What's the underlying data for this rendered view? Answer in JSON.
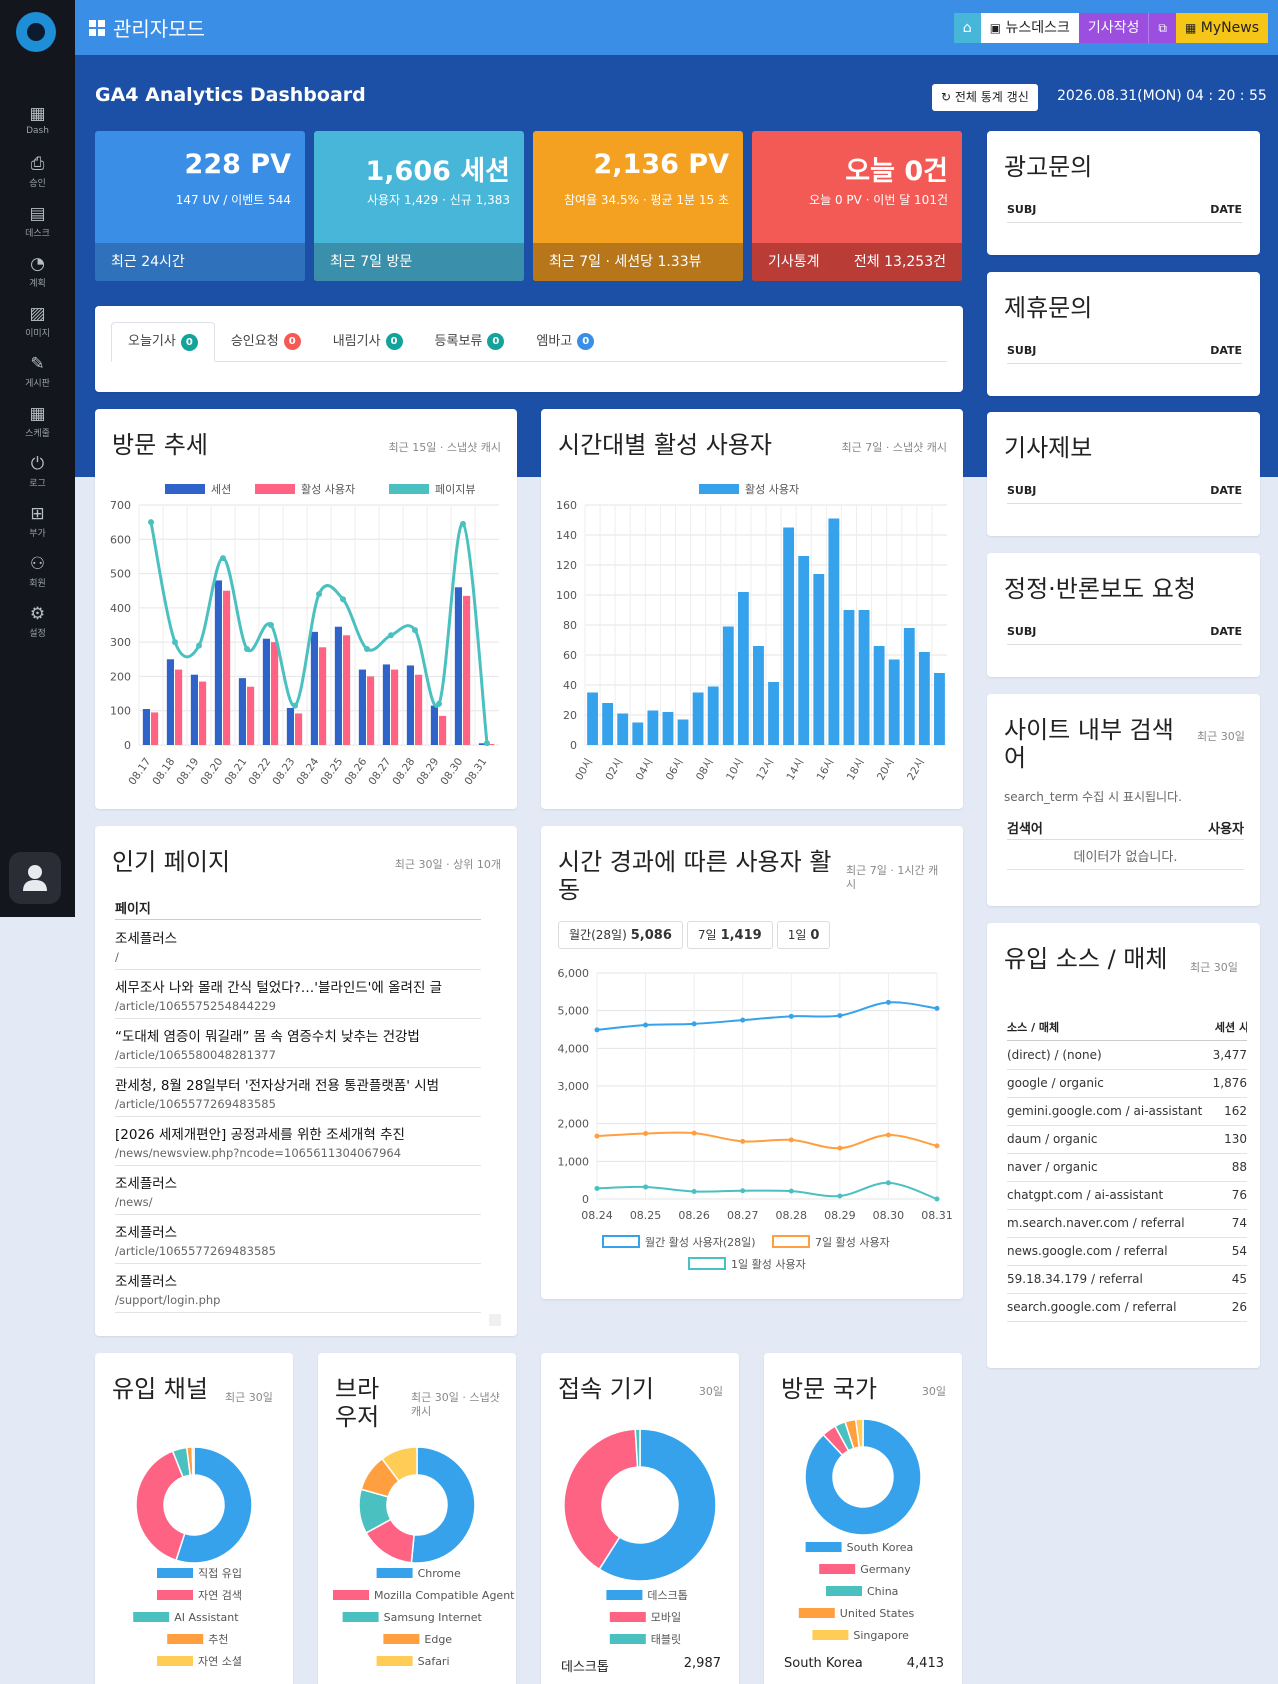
{
  "nav": {
    "items": [
      {
        "label": "Dash",
        "icon": "dashboard-grid-icon"
      },
      {
        "label": "승인",
        "icon": "approve-icon"
      },
      {
        "label": "데스크",
        "icon": "desk-icon"
      },
      {
        "label": "계획",
        "icon": "plan-icon"
      },
      {
        "label": "이미지",
        "icon": "image-icon"
      },
      {
        "label": "게시판",
        "icon": "board-icon"
      },
      {
        "label": "스케줄",
        "icon": "calendar-icon"
      },
      {
        "label": "로그",
        "icon": "log-icon"
      },
      {
        "label": "부가",
        "icon": "plus-box-icon"
      },
      {
        "label": "회원",
        "icon": "member-icon"
      },
      {
        "label": "설정",
        "icon": "gear-icon"
      }
    ]
  },
  "header": {
    "title": "관리자모드",
    "newsdesk": "뉴스데스크",
    "write": "기사작성",
    "mynews": "MyNews"
  },
  "dashboard": {
    "title": "GA4 Analytics Dashboard",
    "refresh": "↻ 전체 통계 갱신",
    "datetime": "2026.08.31(MON) 04 : 20 : 55"
  },
  "stats": [
    {
      "big": "228 PV",
      "sub": "147 UV  /  이벤트 544",
      "foot_left": "최근 24시간",
      "foot_right": "",
      "color": "#3a8ee6",
      "foot_color": "#2f72bb"
    },
    {
      "big": "1,606 세션",
      "sub": "사용자 1,429 · 신규 1,383",
      "foot_left": "최근 7일 방문",
      "foot_right": "",
      "color": "#48b6d8",
      "foot_color": "#3a8fab"
    },
    {
      "big": "2,136 PV",
      "sub": "참여율 34.5% · 평균 1분 15 초",
      "foot_left": "최근 7일 · 세션당 1.33뷰",
      "foot_right": "",
      "color": "#f4a020",
      "foot_color": "#b8761a"
    },
    {
      "big": "오늘 0건",
      "sub": "오늘 0 PV · 이번 달 101건",
      "foot_left": "기사통계",
      "foot_right": "전체 13,253건",
      "color": "#f45a55",
      "foot_color": "#b93c36"
    }
  ],
  "tabs": [
    {
      "label": "오늘기사",
      "count": "0",
      "color": "#13a39a"
    },
    {
      "label": "승인요청",
      "count": "0",
      "color": "#f45a55"
    },
    {
      "label": "내림기사",
      "count": "0",
      "color": "#13a39a"
    },
    {
      "label": "등록보류",
      "count": "0",
      "color": "#13a39a"
    },
    {
      "label": "엠바고",
      "count": "0",
      "color": "#3a8ee6"
    }
  ],
  "side": {
    "ad": {
      "title": "광고문의",
      "subj": "SUBJ",
      "date": "DATE"
    },
    "partner": {
      "title": "제휴문의",
      "subj": "SUBJ",
      "date": "DATE"
    },
    "tip": {
      "title": "기사제보",
      "subj": "SUBJ",
      "date": "DATE"
    },
    "correction": {
      "title": "정정·반론보도 요청",
      "subj": "SUBJ",
      "date": "DATE"
    },
    "search": {
      "title": "사이트 내부 검색어",
      "note": "최근 30일",
      "desc": "search_term 수집 시 표시됩니다.",
      "col1": "검색어",
      "col2": "사용자",
      "empty": "데이터가 없습니다."
    },
    "sources": {
      "title": "유입 소스 / 매체",
      "note": "최근 30일",
      "col1": "소스 / 매체",
      "col2": "세션",
      "col3": "사",
      "rows": [
        [
          "(direct) / (none)",
          "3,477"
        ],
        [
          "google / organic",
          "1,876"
        ],
        [
          "gemini.google.com / ai-assistant",
          "162"
        ],
        [
          "daum / organic",
          "130"
        ],
        [
          "naver / organic",
          "88"
        ],
        [
          "chatgpt.com / ai-assistant",
          "76"
        ],
        [
          "m.search.naver.com / referral",
          "74"
        ],
        [
          "news.google.com / referral",
          "54"
        ],
        [
          "59.18.34.179 / referral",
          "45"
        ],
        [
          "search.google.com / referral",
          "26"
        ]
      ]
    }
  },
  "visit_trend": {
    "title": "방문 추세",
    "note": "최근 15일 · 스냅샷 캐시"
  },
  "hourly": {
    "title": "시간대별 활성 사용자",
    "note": "최근 7일 · 스냅샷 캐시"
  },
  "popular": {
    "title": "인기 페이지",
    "note": "최근 30일 · 상위 10개",
    "col": "페이지",
    "rows": [
      {
        "title": "조세플러스",
        "path": "/"
      },
      {
        "title": "세무조사 나와 몰래 간식 털었다?…'블라인드'에 올려진 글",
        "path": "/article/1065575254844229"
      },
      {
        "title": "“도대체 염증이 뭐길래” 몸 속 염증수치 낮추는 건강법",
        "path": "/article/1065580048281377"
      },
      {
        "title": "관세청, 8월 28일부터 '전자상거래 전용 통관플랫폼' 시범",
        "path": "/article/1065577269483585"
      },
      {
        "title": "[2026 세제개편안] 공정과세를 위한 조세개혁 추진",
        "path": "/news/newsview.php?ncode=1065611304067964"
      },
      {
        "title": "조세플러스",
        "path": "/news/"
      },
      {
        "title": "조세플러스",
        "path": "/article/1065577269483585"
      },
      {
        "title": "조세플러스",
        "path": "/support/login.php"
      }
    ]
  },
  "activity": {
    "title": "시간 경과에 따른 사용자 활동",
    "note": "최근 7일 · 1시간 캐시",
    "pills": [
      {
        "label": "월간(28일)",
        "value": "5,086"
      },
      {
        "label": "7일",
        "value": "1,419"
      },
      {
        "label": "1일",
        "value": "0"
      }
    ]
  },
  "channels": {
    "title": "유입 채널",
    "note": "최근 30일"
  },
  "browsers": {
    "title": "브라우저",
    "note": "최근 30일 · 스냅샷 캐시"
  },
  "devices": {
    "title": "접속 기기",
    "note": "30일",
    "summary_label": "데스크톱",
    "summary_value": "2,987"
  },
  "countries": {
    "title": "방문 국가",
    "note": "30일",
    "summary_label": "South Korea",
    "summary_value": "4,413"
  },
  "chart_data": [
    {
      "type": "bar",
      "id": "visit",
      "categories": [
        "08.17",
        "08.18",
        "08.19",
        "08.20",
        "08.21",
        "08.22",
        "08.23",
        "08.24",
        "08.25",
        "08.26",
        "08.27",
        "08.28",
        "08.29",
        "08.30",
        "08.31"
      ],
      "series": [
        {
          "name": "세션",
          "kind": "bar",
          "color": "#2f63c9",
          "values": [
            105,
            250,
            205,
            480,
            195,
            310,
            108,
            330,
            345,
            220,
            235,
            232,
            115,
            460,
            5
          ]
        },
        {
          "name": "활성 사용자",
          "kind": "bar",
          "color": "#fe6384",
          "values": [
            95,
            220,
            185,
            450,
            170,
            300,
            92,
            285,
            320,
            200,
            220,
            205,
            85,
            435,
            3
          ]
        },
        {
          "name": "페이지뷰",
          "kind": "line",
          "color": "#4bc0c0",
          "values": [
            650,
            300,
            290,
            545,
            280,
            350,
            115,
            440,
            425,
            280,
            320,
            335,
            120,
            645,
            5
          ]
        }
      ],
      "ylim": [
        0,
        700
      ],
      "yticks": [
        0,
        100,
        200,
        300,
        400,
        500,
        600,
        700
      ]
    },
    {
      "type": "bar",
      "id": "hourly",
      "categories": [
        "00시",
        "01시",
        "02시",
        "03시",
        "04시",
        "05시",
        "06시",
        "07시",
        "08시",
        "09시",
        "10시",
        "11시",
        "12시",
        "13시",
        "14시",
        "15시",
        "16시",
        "17시",
        "18시",
        "19시",
        "20시",
        "21시",
        "22시",
        "23시"
      ],
      "xticks": [
        "00시",
        "02시",
        "04시",
        "06시",
        "08시",
        "10시",
        "12시",
        "14시",
        "16시",
        "18시",
        "20시",
        "22시"
      ],
      "series": [
        {
          "name": "활성 사용자",
          "color": "#36a2eb",
          "values": [
            35,
            28,
            21,
            15,
            23,
            22,
            17,
            35,
            39,
            79,
            102,
            66,
            42,
            145,
            126,
            114,
            151,
            90,
            90,
            66,
            57,
            78,
            62,
            48
          ]
        }
      ],
      "ylim": [
        0,
        160
      ],
      "yticks": [
        0,
        20,
        40,
        60,
        80,
        100,
        120,
        140,
        160
      ]
    },
    {
      "type": "line",
      "id": "activity",
      "categories": [
        "08.24",
        "08.25",
        "08.26",
        "08.27",
        "08.28",
        "08.29",
        "08.30",
        "08.31"
      ],
      "series": [
        {
          "name": "월간 활성 사용자(28일)",
          "color": "#36a2eb",
          "values": [
            4490,
            4620,
            4650,
            4750,
            4850,
            4870,
            5220,
            5060
          ]
        },
        {
          "name": "7일 활성 사용자",
          "color": "#ff9f40",
          "values": [
            1670,
            1740,
            1750,
            1530,
            1570,
            1350,
            1700,
            1410
          ]
        },
        {
          "name": "1일 활성 사용자",
          "color": "#4bc0c0",
          "values": [
            280,
            320,
            200,
            220,
            210,
            80,
            430,
            0
          ]
        }
      ],
      "ylim": [
        0,
        6000
      ],
      "yticks": [
        0,
        1000,
        2000,
        3000,
        4000,
        5000,
        6000
      ],
      "ytick_labels": [
        "0",
        "1,000",
        "2,000",
        "3,000",
        "4,000",
        "5,000",
        "6,000"
      ]
    },
    {
      "type": "pie",
      "id": "channels",
      "labels": [
        "직접 유입",
        "자연 검색",
        "AI Assistant",
        "추천",
        "자연 소셜"
      ],
      "colors": [
        "#36a2eb",
        "#ff6384",
        "#4bc0c0",
        "#ff9f40",
        "#ffcd56"
      ],
      "values": [
        55,
        39,
        4,
        1.5,
        0.5
      ]
    },
    {
      "type": "pie",
      "id": "browsers",
      "labels": [
        "Chrome",
        "Mozilla Compatible Agent",
        "Samsung Internet",
        "Edge",
        "Safari"
      ],
      "colors": [
        "#36a2eb",
        "#ff6384",
        "#4bc0c0",
        "#ff9f40",
        "#ffcd56"
      ],
      "values": [
        50,
        15,
        12,
        10,
        10
      ]
    },
    {
      "type": "pie",
      "id": "devices",
      "labels": [
        "데스크톱",
        "모바일",
        "태블릿"
      ],
      "colors": [
        "#36a2eb",
        "#ff6384",
        "#4bc0c0"
      ],
      "values": [
        59,
        40,
        1
      ]
    },
    {
      "type": "pie",
      "id": "countries",
      "labels": [
        "South Korea",
        "Germany",
        "China",
        "United States",
        "Singapore"
      ],
      "colors": [
        "#36a2eb",
        "#ff6384",
        "#4bc0c0",
        "#ff9f40",
        "#ffcd56"
      ],
      "values": [
        88,
        4,
        3,
        3,
        2
      ]
    }
  ]
}
